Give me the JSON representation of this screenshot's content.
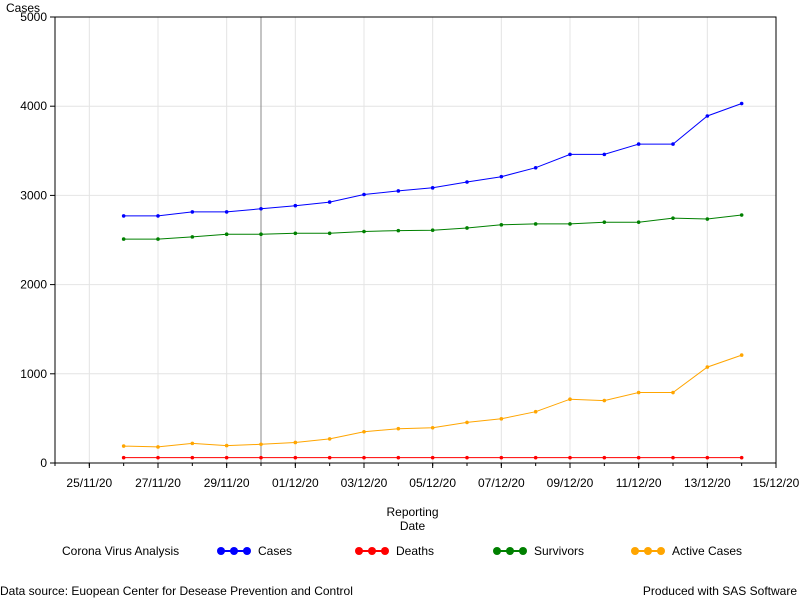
{
  "chart_data": {
    "type": "line",
    "ylabel": "Cases",
    "xlabel_lines": [
      "Reporting",
      "Date"
    ],
    "ylim": [
      0,
      5000
    ],
    "yticks": [
      0,
      1000,
      2000,
      3000,
      4000,
      5000
    ],
    "xlim": [
      "2020-11-24",
      "2020-12-15"
    ],
    "xticks": [
      "25/11/20",
      "27/11/20",
      "29/11/20",
      "01/12/20",
      "03/12/20",
      "05/12/20",
      "07/12/20",
      "09/12/20",
      "11/12/20",
      "13/12/20",
      "15/12/20"
    ],
    "grid": true,
    "reference_line_x": "2020-11-30",
    "x": [
      "2020-11-26",
      "2020-11-27",
      "2020-11-28",
      "2020-11-29",
      "2020-11-30",
      "2020-12-01",
      "2020-12-02",
      "2020-12-03",
      "2020-12-04",
      "2020-12-05",
      "2020-12-06",
      "2020-12-07",
      "2020-12-08",
      "2020-12-09",
      "2020-12-10",
      "2020-12-11",
      "2020-12-12",
      "2020-12-13",
      "2020-12-14"
    ],
    "series": [
      {
        "name": "Cases",
        "color": "#0000ff",
        "values": [
          2770,
          2770,
          2815,
          2815,
          2850,
          2885,
          2925,
          3010,
          3050,
          3085,
          3150,
          3210,
          3310,
          3460,
          3460,
          3575,
          3575,
          3890,
          4030
        ]
      },
      {
        "name": "Deaths",
        "color": "#ff0000",
        "values": [
          60,
          60,
          60,
          60,
          60,
          60,
          60,
          60,
          60,
          60,
          60,
          60,
          60,
          60,
          60,
          60,
          60,
          60,
          60
        ]
      },
      {
        "name": "Survivors",
        "color": "#008000",
        "values": [
          2510,
          2510,
          2535,
          2565,
          2565,
          2575,
          2575,
          2595,
          2605,
          2610,
          2635,
          2670,
          2680,
          2680,
          2700,
          2700,
          2745,
          2735,
          2780
        ]
      },
      {
        "name": "Active Cases",
        "color": "#ffa500",
        "values": [
          190,
          180,
          220,
          195,
          210,
          230,
          270,
          350,
          385,
          395,
          455,
          495,
          575,
          715,
          700,
          790,
          790,
          1075,
          1210
        ]
      }
    ],
    "legend_title": "Corona Virus Analysis",
    "legend_position": "bottom"
  },
  "footer": {
    "source": "Data source: Euopean Center for Desease Prevention and Control",
    "produced": "Produced with SAS Software"
  }
}
